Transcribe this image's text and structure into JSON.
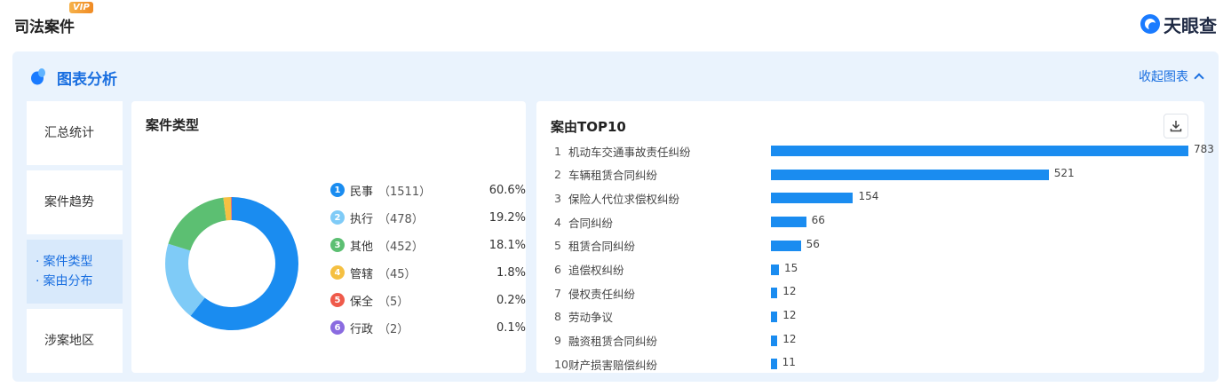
{
  "header": {
    "title": "司法案件",
    "vip_badge": "VIP",
    "brand": "天眼查"
  },
  "panel": {
    "title": "图表分析",
    "collapse_label": "收起图表"
  },
  "sidebar": {
    "items": [
      {
        "label": "汇总统计",
        "active": false
      },
      {
        "label": "案件趋势",
        "active": false
      },
      {
        "label": "案件类型",
        "label2": "案由分布",
        "active": true
      },
      {
        "label": "涉案地区",
        "active": false
      }
    ]
  },
  "case_types": {
    "title": "案件类型",
    "legend": [
      {
        "index": "1",
        "name": "民事",
        "count": "（1511）",
        "pct": "60.6%",
        "color": "#1a8cf0"
      },
      {
        "index": "2",
        "name": "执行",
        "count": "（478）",
        "pct": "19.2%",
        "color": "#7fcbf7"
      },
      {
        "index": "3",
        "name": "其他",
        "count": "（452）",
        "pct": "18.1%",
        "color": "#5cbf72"
      },
      {
        "index": "4",
        "name": "管辖",
        "count": "（45）",
        "pct": "1.8%",
        "color": "#f5c042"
      },
      {
        "index": "5",
        "name": "保全",
        "count": "（5）",
        "pct": "0.2%",
        "color": "#ef5a4a"
      },
      {
        "index": "6",
        "name": "行政",
        "count": "（2）",
        "pct": "0.1%",
        "color": "#8a6be0"
      }
    ]
  },
  "chart_data": [
    {
      "type": "pie",
      "title": "案件类型",
      "categories": [
        "民事",
        "执行",
        "其他",
        "管辖",
        "保全",
        "行政"
      ],
      "values": [
        1511,
        478,
        452,
        45,
        5,
        2
      ],
      "percentages": [
        60.6,
        19.2,
        18.1,
        1.8,
        0.2,
        0.1
      ],
      "donut": true
    },
    {
      "type": "bar",
      "orientation": "horizontal",
      "title": "案由TOP10",
      "categories": [
        "机动车交通事故责任纠纷",
        "车辆租赁合同纠纷",
        "保险人代位求偿权纠纷",
        "合同纠纷",
        "租赁合同纠纷",
        "追偿权纠纷",
        "侵权责任纠纷",
        "劳动争议",
        "融资租赁合同纠纷",
        "财产损害赔偿纠纷"
      ],
      "ranks": [
        "1",
        "2",
        "3",
        "4",
        "5",
        "6",
        "7",
        "8",
        "9",
        "10"
      ],
      "values": [
        783,
        521,
        154,
        66,
        56,
        15,
        12,
        12,
        12,
        11
      ],
      "xlim": [
        0,
        783
      ]
    }
  ],
  "top10": {
    "title": "案由TOP10",
    "download_icon": "download-icon"
  }
}
